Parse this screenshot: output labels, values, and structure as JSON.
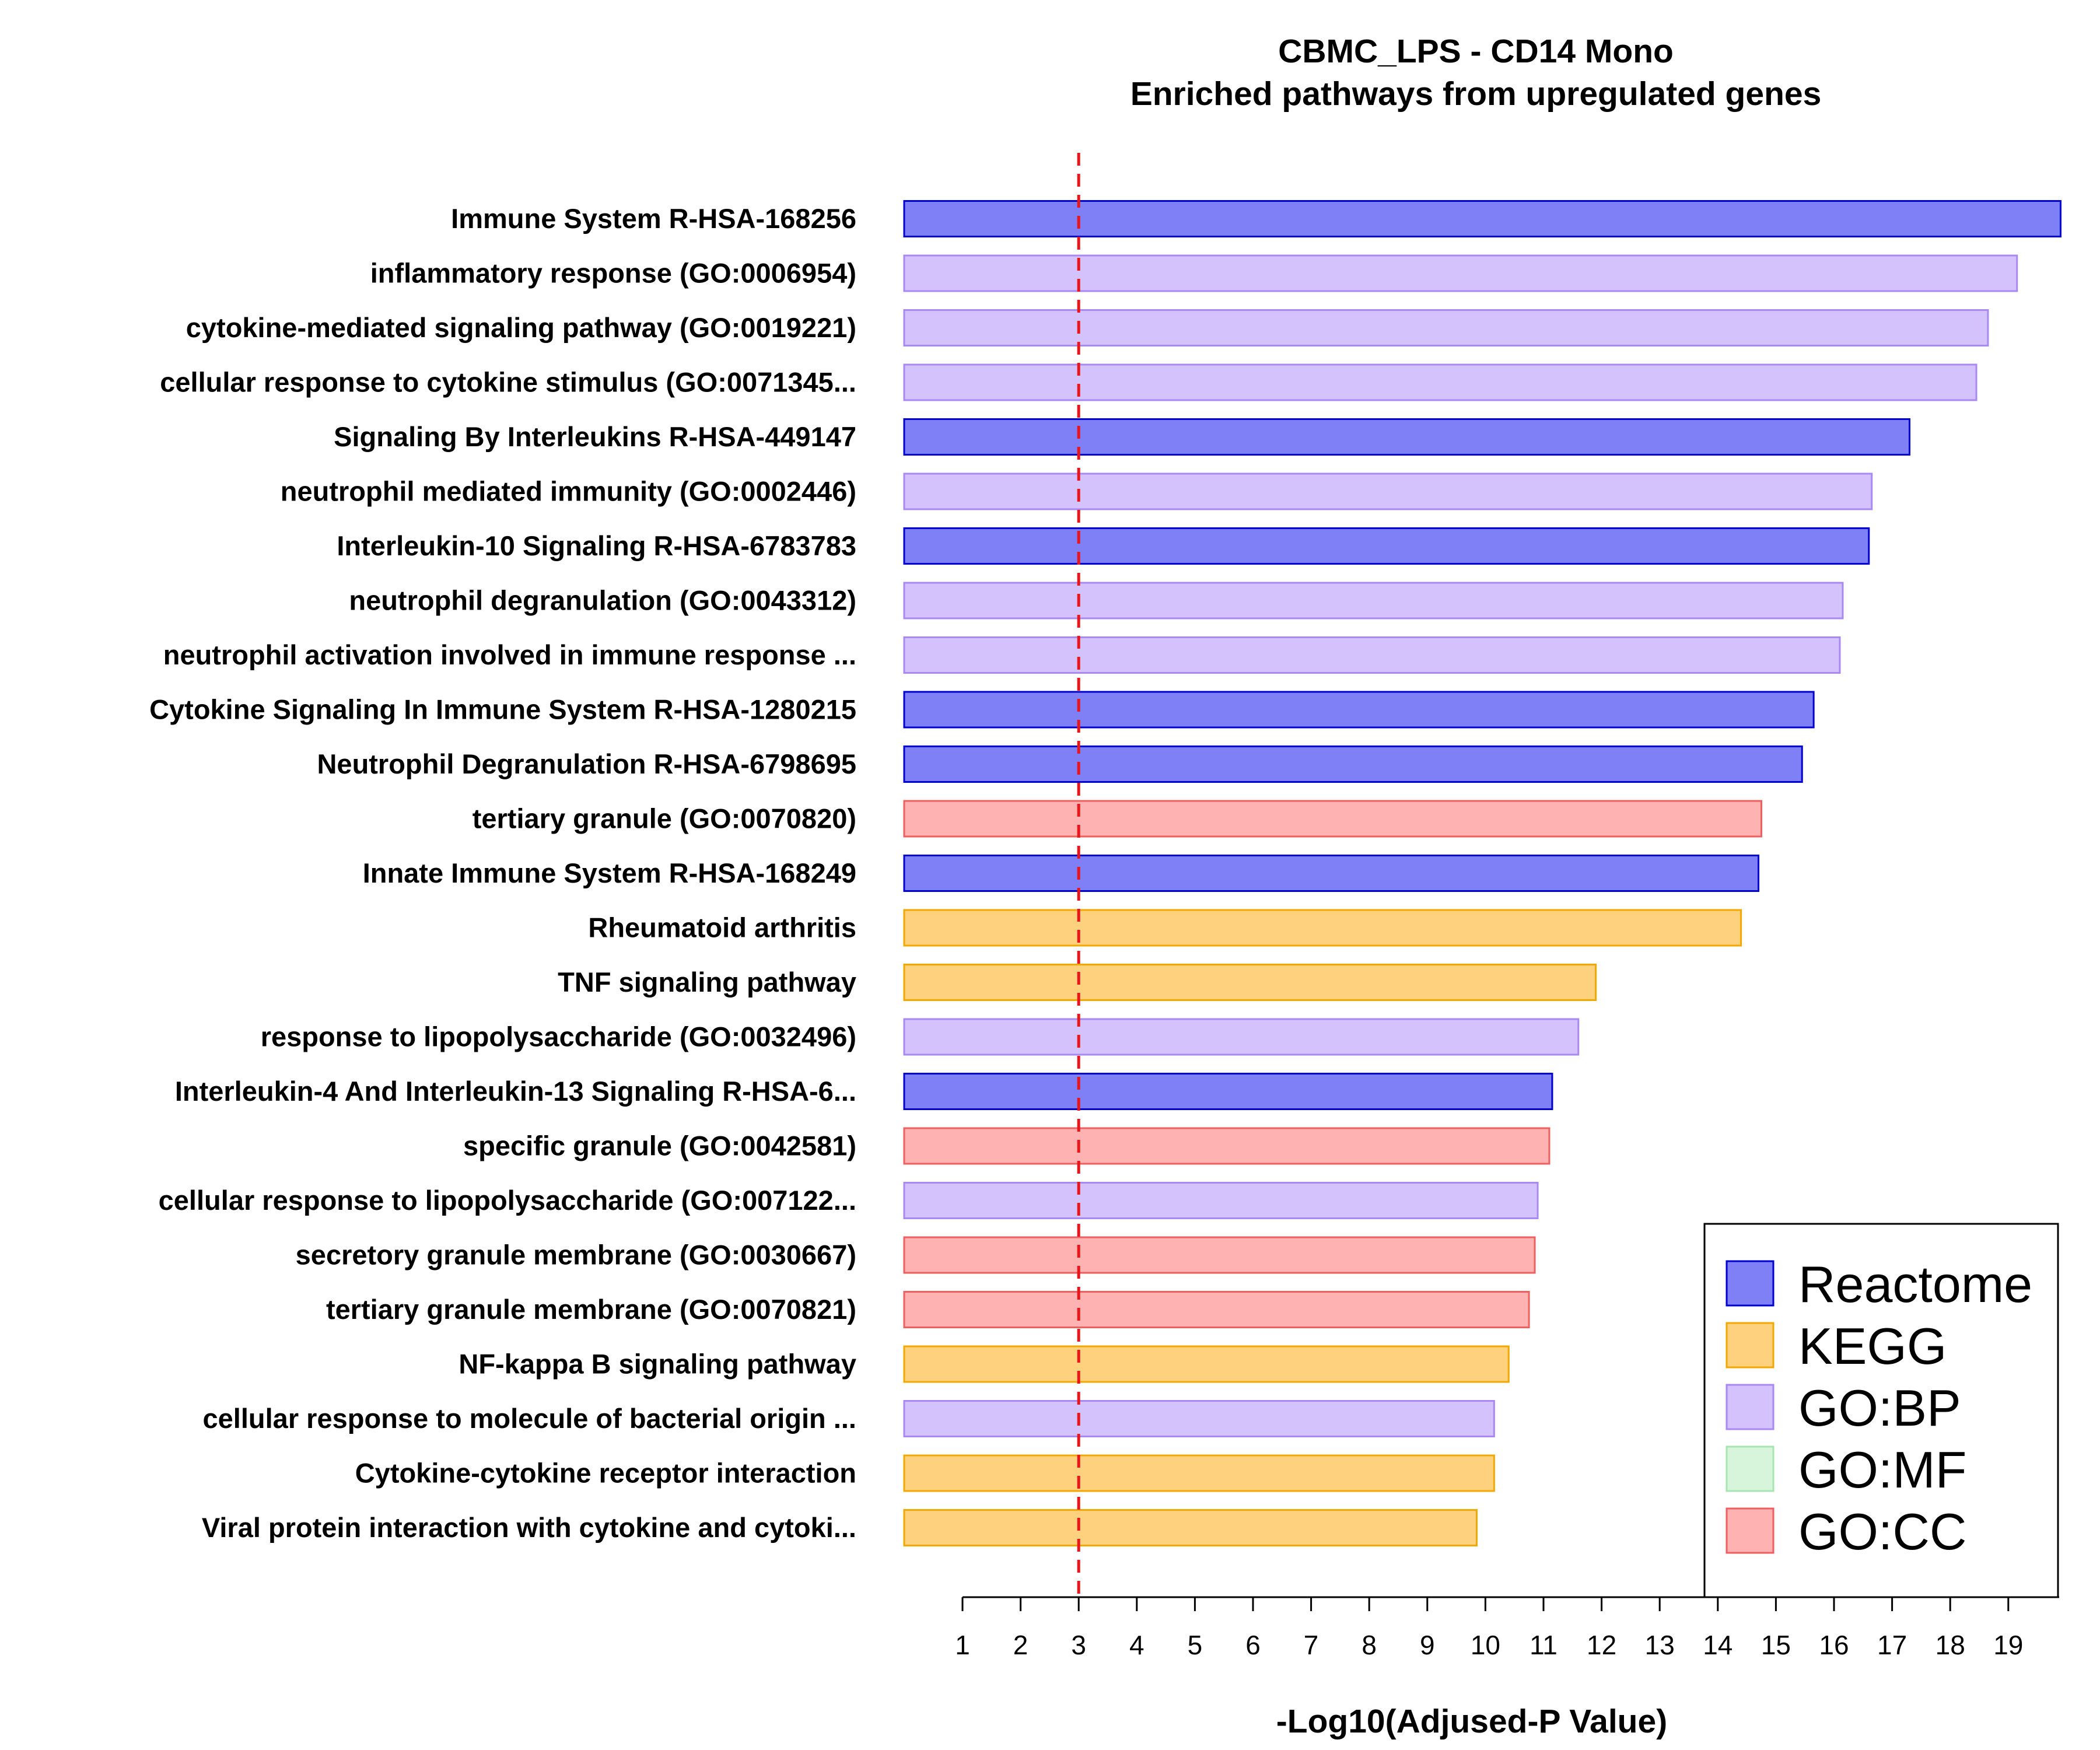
{
  "chart_data": {
    "type": "bar",
    "orientation": "horizontal",
    "title": "CBMC_LPS - CD14 Mono",
    "subtitle": "Enriched pathways from upregulated genes",
    "xlabel": "-Log10(Adjused-P Value)",
    "ylabel": "",
    "x_ticks": [
      1,
      2,
      3,
      4,
      5,
      6,
      7,
      8,
      9,
      10,
      11,
      12,
      13,
      14,
      15,
      16,
      17,
      18,
      19
    ],
    "xlim": [
      0,
      20
    ],
    "threshold_line": {
      "value": 3,
      "color": "#e8151b",
      "style": "dashed"
    },
    "grid": false,
    "legend_position": "bottom-right",
    "colors": {
      "Reactome": {
        "fill": "#7f7ff6",
        "stroke": "#0000d0"
      },
      "KEGG": {
        "fill": "#fed17f",
        "stroke": "#f2a800"
      },
      "GO:BP": {
        "fill": "#d4c2fc",
        "stroke": "#a888f3"
      },
      "GO:MF": {
        "fill": "#d6f5db",
        "stroke": "#a6e5b3"
      },
      "GO:CC": {
        "fill": "#feb2b2",
        "stroke": "#ee5f5f"
      }
    },
    "legend": [
      "Reactome",
      "KEGG",
      "GO:BP",
      "GO:MF",
      "GO:CC"
    ],
    "bars": [
      {
        "label": "Immune System R-HSA-168256",
        "value": 19.9,
        "category": "Reactome"
      },
      {
        "label": "inflammatory response (GO:0006954)",
        "value": 19.15,
        "category": "GO:BP"
      },
      {
        "label": "cytokine-mediated signaling pathway (GO:0019221)",
        "value": 18.65,
        "category": "GO:BP"
      },
      {
        "label": "cellular response to cytokine stimulus (GO:0071345...",
        "value": 18.45,
        "category": "GO:BP"
      },
      {
        "label": "Signaling By Interleukins R-HSA-449147",
        "value": 17.3,
        "category": "Reactome"
      },
      {
        "label": "neutrophil mediated immunity (GO:0002446)",
        "value": 16.65,
        "category": "GO:BP"
      },
      {
        "label": "Interleukin-10 Signaling R-HSA-6783783",
        "value": 16.6,
        "category": "Reactome"
      },
      {
        "label": "neutrophil degranulation (GO:0043312)",
        "value": 16.15,
        "category": "GO:BP"
      },
      {
        "label": "neutrophil activation involved in immune response ...",
        "value": 16.1,
        "category": "GO:BP"
      },
      {
        "label": "Cytokine Signaling In Immune System R-HSA-1280215",
        "value": 15.65,
        "category": "Reactome"
      },
      {
        "label": "Neutrophil Degranulation R-HSA-6798695",
        "value": 15.45,
        "category": "Reactome"
      },
      {
        "label": "tertiary granule (GO:0070820)",
        "value": 14.75,
        "category": "GO:CC"
      },
      {
        "label": "Innate Immune System R-HSA-168249",
        "value": 14.7,
        "category": "Reactome"
      },
      {
        "label": "Rheumatoid arthritis",
        "value": 14.4,
        "category": "KEGG"
      },
      {
        "label": "TNF signaling pathway",
        "value": 11.9,
        "category": "KEGG"
      },
      {
        "label": "response to lipopolysaccharide (GO:0032496)",
        "value": 11.6,
        "category": "GO:BP"
      },
      {
        "label": "Interleukin-4 And Interleukin-13 Signaling R-HSA-6...",
        "value": 11.15,
        "category": "Reactome"
      },
      {
        "label": "specific granule (GO:0042581)",
        "value": 11.1,
        "category": "GO:CC"
      },
      {
        "label": "cellular response to lipopolysaccharide (GO:007122...",
        "value": 10.9,
        "category": "GO:BP"
      },
      {
        "label": "secretory granule membrane (GO:0030667)",
        "value": 10.85,
        "category": "GO:CC"
      },
      {
        "label": "tertiary granule membrane (GO:0070821)",
        "value": 10.75,
        "category": "GO:CC"
      },
      {
        "label": "NF-kappa B signaling pathway",
        "value": 10.4,
        "category": "KEGG"
      },
      {
        "label": "cellular response to molecule of bacterial origin ...",
        "value": 10.15,
        "category": "GO:BP"
      },
      {
        "label": "Cytokine-cytokine receptor interaction",
        "value": 10.15,
        "category": "KEGG"
      },
      {
        "label": "Viral protein interaction with cytokine and cytoki...",
        "value": 9.85,
        "category": "KEGG"
      }
    ]
  }
}
